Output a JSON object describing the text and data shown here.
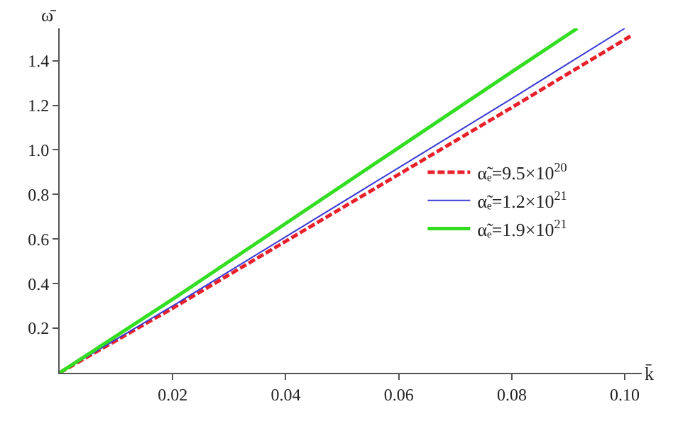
{
  "chart_data": {
    "type": "line",
    "xlabel": "k̄",
    "ylabel": "ω̄",
    "xlim": [
      0,
      0.103
    ],
    "ylim": [
      0,
      1.545
    ],
    "xticks": [
      0.02,
      0.04,
      0.06,
      0.08,
      {
        "value": 0.1,
        "label": "0.10"
      }
    ],
    "yticks": [
      0.2,
      0.4,
      0.6,
      0.8,
      {
        "value": 1,
        "label": "1.0"
      },
      1.2,
      1.4
    ],
    "legend": "right",
    "marker": "none",
    "series": [
      {
        "name": "α̃ₑ=9.5×10$^{20}$",
        "color": "#e8202a",
        "line_style": "dashed",
        "x": [
          0,
          0.02,
          0.04,
          0.06,
          0.08,
          0.101
        ],
        "values": [
          0,
          0.29,
          0.59,
          0.89,
          1.19,
          1.51
        ]
      },
      {
        "name": "α̃ₑ=1.2×10$^{21}$",
        "color": "#3b3bd6",
        "line_style": "solid",
        "x": [
          0,
          0.02,
          0.04,
          0.06,
          0.08,
          0.1
        ],
        "values": [
          0,
          0.3,
          0.61,
          0.92,
          1.23,
          1.545
        ]
      },
      {
        "name": "α̃ₑ=1.9×10$^{21}$",
        "color": "#33dd22",
        "line_style": "solid",
        "x": [
          0,
          0.02,
          0.04,
          0.06,
          0.08,
          0.0916
        ],
        "values": [
          0,
          0.33,
          0.67,
          1.01,
          1.35,
          1.545
        ]
      }
    ]
  }
}
